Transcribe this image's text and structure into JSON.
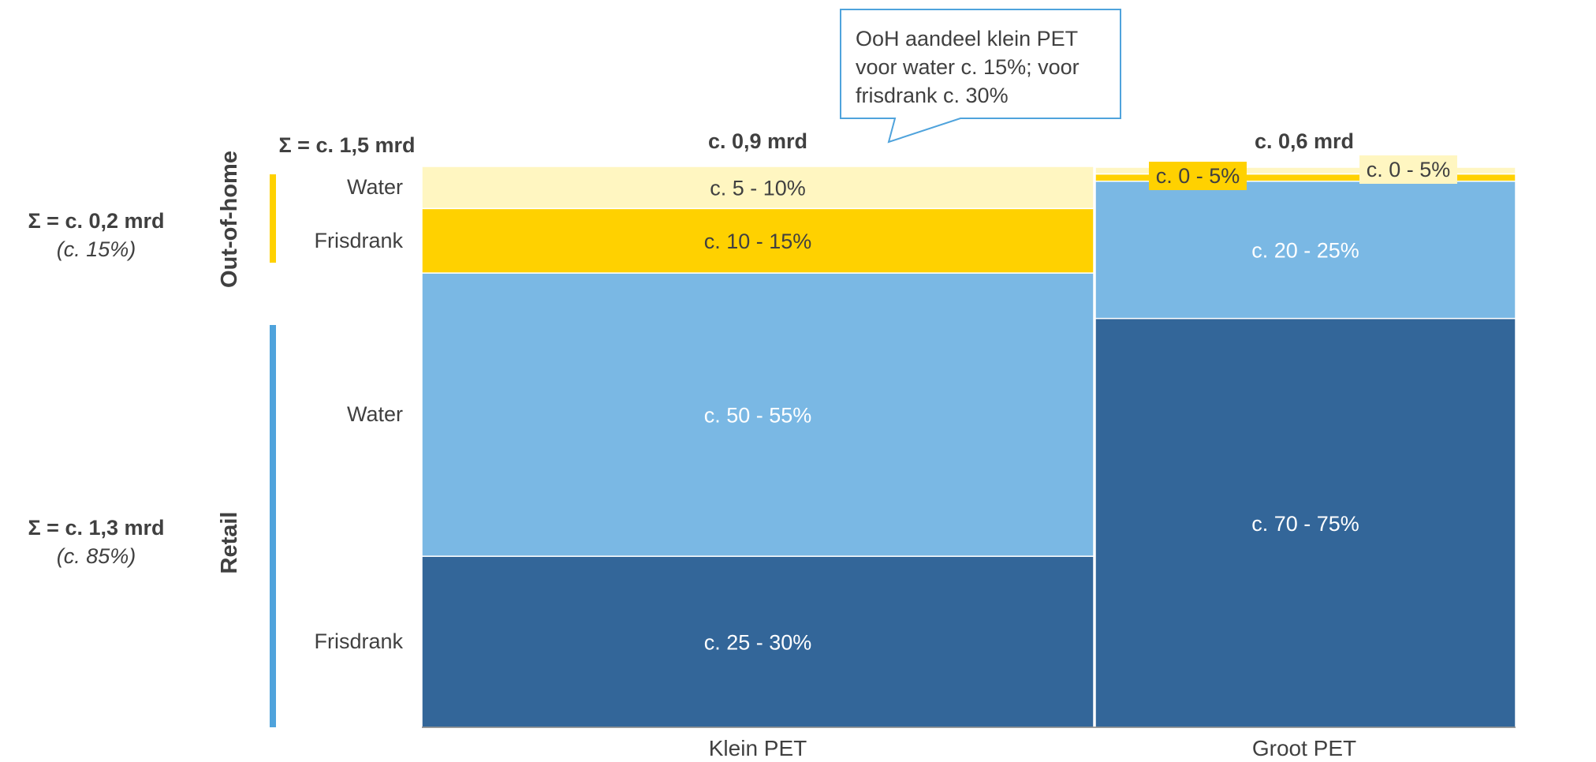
{
  "chart_data": {
    "type": "bar",
    "subtype": "mekko",
    "total_label": "Σ = c. 1,5 mrd",
    "columns": [
      {
        "label": "Klein PET",
        "total_label": "c. 0,9 mrd",
        "total_value_mrd": 0.9,
        "segments": [
          {
            "group": "Retail",
            "category": "Frisdrank",
            "label": "c. 25 - 30%",
            "share": 0.305
          },
          {
            "group": "Retail",
            "category": "Water",
            "label": "c. 50 - 55%",
            "share": 0.505
          },
          {
            "group": "Out-of-home",
            "category": "Frisdrank",
            "label": "c. 10 - 15%",
            "share": 0.115
          },
          {
            "group": "Out-of-home",
            "category": "Water",
            "label": "c. 5 - 10%",
            "share": 0.075
          }
        ]
      },
      {
        "label": "Groot PET",
        "total_label": "c. 0,6 mrd",
        "total_value_mrd": 0.6,
        "segments": [
          {
            "group": "Retail",
            "category": "Frisdrank",
            "label": "c. 70 - 75%",
            "share": 0.73
          },
          {
            "group": "Retail",
            "category": "Water",
            "label": "c. 20 - 25%",
            "share": 0.245
          },
          {
            "group": "Out-of-home",
            "category": "Frisdrank",
            "label": "c. 0 - 5%",
            "share": 0.013
          },
          {
            "group": "Out-of-home",
            "category": "Water",
            "label": "c. 0 - 5%",
            "share": 0.012
          }
        ]
      }
    ],
    "row_labels": [
      "Water",
      "Frisdrank",
      "Water",
      "Frisdrank"
    ],
    "groups": [
      {
        "name": "Out-of-home",
        "sum_label": "Σ = c. 0,2 mrd",
        "share_label": "(c. 15%)"
      },
      {
        "name": "Retail",
        "sum_label": "Σ = c. 1,3 mrd",
        "share_label": "(c. 85%)"
      }
    ],
    "callout": [
      "OoH aandeel klein PET",
      "voor water c. 15%; voor",
      "frisdrank c. 30%"
    ],
    "colors": {
      "retail_frisdrank": "#336699",
      "retail_water": "#7AB8E4",
      "ooh_frisdrank": "#FFD100",
      "ooh_water": "#FFF6C1",
      "retail_bar": "#4FA3DC",
      "ooh_bar": "#FFD100",
      "text_dark": "#404040",
      "callout_border": "#4FA3DC"
    }
  }
}
